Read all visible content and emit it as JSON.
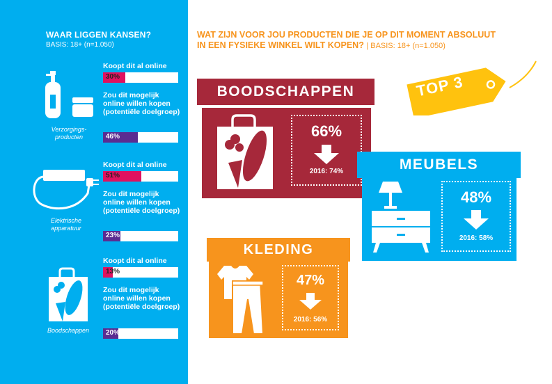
{
  "left": {
    "title": "WAAR LIGGEN KANSEN?",
    "basis": "BASIS: 18+ (n=1.050)",
    "groups": [
      {
        "caption": "Verzorgings-producten",
        "icon": "bottles-icon",
        "online_label": "Koopt dit al online",
        "online_value": 30,
        "online_text": "30%",
        "potential_label": "Zou dit mogelijk online willen kopen (potentiële doelgroep)",
        "potential_value": 46,
        "potential_text": "46%"
      },
      {
        "caption": "Elektrische apparatuur",
        "icon": "power-cable-icon",
        "online_label": "Koopt dit al online",
        "online_value": 51,
        "online_text": "51%",
        "potential_label": "Zou dit mogelijk online willen kopen (potentiële doelgroep)",
        "potential_value": 23,
        "potential_text": "23%"
      },
      {
        "caption": "Boodschappen",
        "icon": "grocery-bag-icon",
        "online_label": "Koopt dit al online",
        "online_value": 13,
        "online_text": "13%",
        "potential_label": "Zou dit mogelijk online willen kopen (potentiële doelgroep)",
        "potential_value": 20,
        "potential_text": "20%"
      }
    ]
  },
  "right": {
    "title": "WAT ZIJN VOOR JOU PRODUCTEN DIE JE OP DIT MOMENT ABSOLUUT IN EEN FYSIEKE WINKEL WILT KOPEN?",
    "basis": "| BASIS: 18+ (n=1.050)",
    "tag_label": "TOP 3"
  },
  "colors": {
    "left_bg": "#00aeef",
    "online_bar": "#e0115f",
    "potential_bar": "#5b2c91",
    "orange": "#f7941d",
    "red": "#a6283a",
    "blue": "#00aeef",
    "yellow": "#ffc20e"
  },
  "chart_data": {
    "type": "bar",
    "title": "WAAR LIGGEN KANSEN?",
    "categories": [
      "Verzorgings-producten",
      "Elektrische apparatuur",
      "Boodschappen"
    ],
    "series": [
      {
        "name": "Koopt dit al online",
        "values": [
          30,
          51,
          13
        ]
      },
      {
        "name": "Zou dit mogelijk online willen kopen (potentiële doelgroep)",
        "values": [
          46,
          23,
          20
        ]
      }
    ],
    "ylim": [
      0,
      100
    ],
    "top3": [
      {
        "rank": 1,
        "name": "BOODSCHAPPEN",
        "value": 66,
        "value_text": "66%",
        "previous_text": "2016: 74%",
        "icon": "grocery-bag-icon"
      },
      {
        "rank": 2,
        "name": "MEUBELS",
        "value": 48,
        "value_text": "48%",
        "previous_text": "2016: 58%",
        "icon": "cabinet-lamp-icon"
      },
      {
        "rank": 3,
        "name": "KLEDING",
        "value": 47,
        "value_text": "47%",
        "previous_text": "2016: 56%",
        "icon": "clothes-icon"
      }
    ]
  }
}
